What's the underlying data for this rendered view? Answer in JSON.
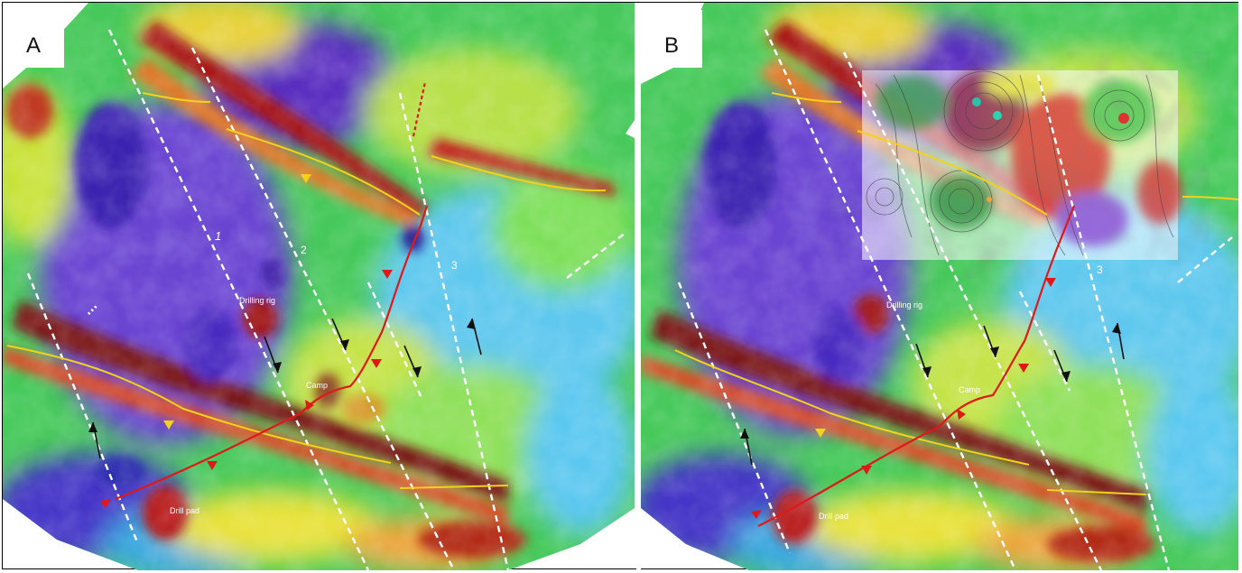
{
  "figure": {
    "panels": [
      {
        "letter": "A",
        "labels": {
          "drilling_rig": "Drilling rig",
          "camp": "Camp",
          "drill_pad": "Drill pad",
          "lineament_1": "1",
          "lineament_2": "2",
          "lineament_3": "3"
        },
        "has_inset": false
      },
      {
        "letter": "B",
        "labels": {
          "drilling_rig": "Drilling rig",
          "camp": "Camp",
          "drill_pad": "Drill pad",
          "lineament_3": "3"
        },
        "has_inset": true
      }
    ],
    "legend_colors": {
      "high": "#b81c1c",
      "mid_high": "#f0a53a",
      "mid": "#e8e43a",
      "mid_low": "#3fbf4a",
      "low": "#46b4e8",
      "very_low": "#4a2ab8",
      "lineament": "#ffffff",
      "fault_red": "#e01818",
      "fault_yellow": "#f2d21a"
    }
  }
}
